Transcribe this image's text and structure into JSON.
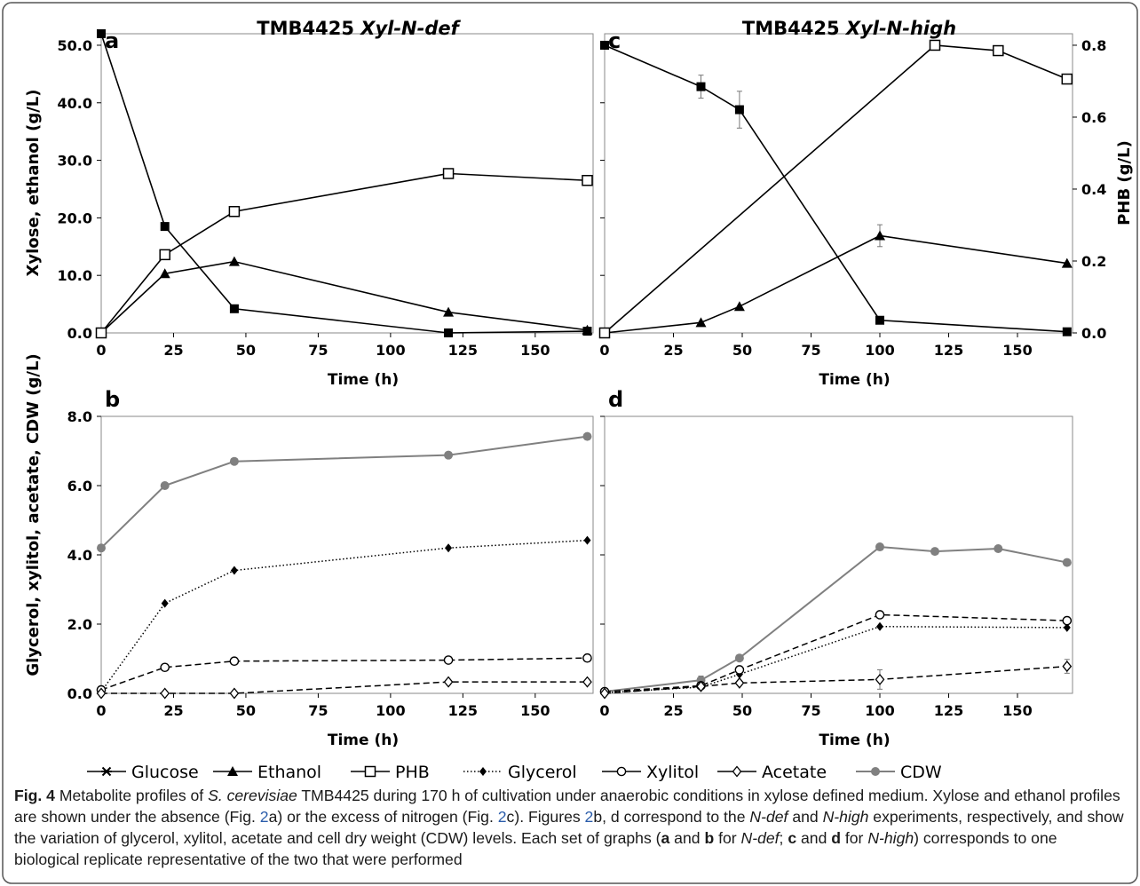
{
  "colors": {
    "black": "#000000",
    "cdw_gray": "#808080",
    "frame_border": "#555555"
  },
  "chart_data": [
    {
      "panel": "a",
      "type": "line",
      "title_prefix": "TMB4425",
      "title_strain": "Xyl-N-def",
      "xlabel": "Time (h)",
      "ylabel": "Xylose, ethanol (g/L)",
      "xlim": [
        0,
        170
      ],
      "ylim": [
        0,
        52
      ],
      "xticks": [
        "0",
        "25",
        "50",
        "75",
        "100",
        "125",
        "150"
      ],
      "yticks": [
        "0.0",
        "10.0",
        "20.0",
        "30.0",
        "40.0",
        "50.0"
      ],
      "series": [
        {
          "name": "Xylose",
          "marker": "square-filled",
          "axis": "left",
          "x": [
            0,
            22,
            46,
            120,
            168
          ],
          "y": [
            52.0,
            18.5,
            4.2,
            0.0,
            0.3
          ]
        },
        {
          "name": "Ethanol",
          "marker": "triangle-filled",
          "axis": "left",
          "x": [
            0,
            22,
            46,
            120,
            168
          ],
          "y": [
            0.0,
            10.3,
            12.4,
            3.6,
            0.5
          ]
        },
        {
          "name": "PHB",
          "marker": "square-open",
          "axis": "left",
          "x": [
            0,
            22,
            46,
            120,
            168
          ],
          "y": [
            0.0,
            13.6,
            21.1,
            27.7,
            26.5
          ]
        }
      ]
    },
    {
      "panel": "c",
      "type": "line",
      "title_prefix": "TMB4425",
      "title_strain": "Xyl-N-high",
      "xlabel": "Time (h)",
      "y2label": "PHB (g/L)",
      "xlim": [
        0,
        170
      ],
      "ylim": [
        0,
        52
      ],
      "y2lim": [
        0,
        0.832
      ],
      "xticks": [
        "0",
        "25",
        "50",
        "75",
        "100",
        "125",
        "150"
      ],
      "y2ticks": [
        "0.0",
        "0.2",
        "0.4",
        "0.6",
        "0.8"
      ],
      "series": [
        {
          "name": "Xylose",
          "marker": "square-filled",
          "axis": "left",
          "x": [
            0,
            35,
            49,
            100,
            168
          ],
          "y": [
            50.0,
            42.8,
            38.8,
            2.2,
            0.2
          ],
          "err": [
            0,
            2.0,
            3.2,
            0,
            0
          ]
        },
        {
          "name": "Ethanol",
          "marker": "triangle-filled",
          "axis": "left",
          "x": [
            0,
            35,
            49,
            100,
            168
          ],
          "y": [
            0.0,
            1.8,
            4.6,
            16.9,
            12.1
          ],
          "err": [
            0,
            0,
            0,
            1.9,
            0
          ]
        },
        {
          "name": "PHB",
          "marker": "square-open",
          "axis": "right",
          "x": [
            0,
            120,
            143,
            168
          ],
          "y": [
            0.0,
            0.8,
            0.785,
            0.706
          ]
        }
      ]
    },
    {
      "panel": "b",
      "type": "line",
      "xlabel": "Time (h)",
      "ylabel": "Glycerol, xylitol, acetate, CDW (g/L)",
      "xlim": [
        0,
        170
      ],
      "ylim": [
        0,
        8
      ],
      "xticks": [
        "0",
        "25",
        "50",
        "75",
        "100",
        "125",
        "150"
      ],
      "yticks": [
        "0.0",
        "2.0",
        "4.0",
        "6.0",
        "8.0"
      ],
      "series": [
        {
          "name": "CDW",
          "marker": "circle-gray",
          "line": "solid-gray",
          "x": [
            0,
            22,
            46,
            120,
            168
          ],
          "y": [
            4.2,
            6.0,
            6.7,
            6.88,
            7.42
          ]
        },
        {
          "name": "Glycerol",
          "marker": "diamond-filled",
          "line": "dotted",
          "x": [
            0,
            22,
            46,
            120,
            168
          ],
          "y": [
            0.05,
            2.6,
            3.55,
            4.2,
            4.42
          ]
        },
        {
          "name": "Xylitol",
          "marker": "circle-open",
          "line": "dashed",
          "x": [
            0,
            22,
            46,
            120,
            168
          ],
          "y": [
            0.1,
            0.75,
            0.93,
            0.96,
            1.02
          ]
        },
        {
          "name": "Acetate",
          "marker": "diamond-open",
          "line": "dashed",
          "x": [
            0,
            22,
            46,
            120,
            168
          ],
          "y": [
            0.0,
            0.0,
            0.0,
            0.33,
            0.33
          ]
        }
      ]
    },
    {
      "panel": "d",
      "type": "line",
      "xlabel": "Time (h)",
      "xlim": [
        0,
        170
      ],
      "ylim": [
        0,
        8
      ],
      "xticks": [
        "0",
        "25",
        "50",
        "75",
        "100",
        "125",
        "150"
      ],
      "series": [
        {
          "name": "CDW",
          "marker": "circle-gray",
          "line": "solid-gray",
          "x": [
            0,
            35,
            49,
            100,
            120,
            143,
            168
          ],
          "y": [
            0.05,
            0.38,
            1.02,
            4.23,
            4.1,
            4.18,
            3.78
          ],
          "err": [
            0,
            0.12,
            0,
            0,
            0,
            0,
            0
          ]
        },
        {
          "name": "Glycerol",
          "marker": "diamond-filled",
          "line": "dotted",
          "x": [
            0,
            35,
            49,
            100,
            168
          ],
          "y": [
            0.02,
            0.18,
            0.55,
            1.93,
            1.9
          ]
        },
        {
          "name": "Xylitol",
          "marker": "circle-open",
          "line": "dashed",
          "x": [
            0,
            35,
            49,
            100,
            168
          ],
          "y": [
            0.05,
            0.22,
            0.68,
            2.27,
            2.1
          ]
        },
        {
          "name": "Acetate",
          "marker": "diamond-open",
          "line": "dashed",
          "x": [
            0,
            35,
            49,
            100,
            168
          ],
          "y": [
            0.0,
            0.2,
            0.3,
            0.4,
            0.78
          ],
          "err": [
            0,
            0,
            0,
            0.28,
            0.2
          ]
        }
      ]
    }
  ],
  "legend": [
    {
      "name": "Glucose",
      "marker": "asterisk",
      "line": "solid"
    },
    {
      "name": "Ethanol",
      "marker": "triangle-filled",
      "line": "solid"
    },
    {
      "name": "PHB",
      "marker": "square-open",
      "line": "solid"
    },
    {
      "name": "Glycerol",
      "marker": "diamond-filled",
      "line": "dotted"
    },
    {
      "name": "Xylitol",
      "marker": "circle-open",
      "line": "solid"
    },
    {
      "name": "Acetate",
      "marker": "diamond-open",
      "line": "solid"
    },
    {
      "name": "CDW",
      "marker": "circle-gray",
      "line": "solid-gray"
    }
  ],
  "caption": {
    "fig_label": "Fig. 4",
    "t1": "Metabolite profiles of ",
    "t1_species": "S. cerevisiae",
    "t2": " TMB4425 during 170 h of cultivation under anaerobic conditions in xylose defined medium. Xylose and ethanol profiles are shown under the absence (Fig. ",
    "ref1": "2",
    "t3": "a) or the excess of nitrogen (Fig. ",
    "ref2": "2",
    "t4": "c). Figures ",
    "ref3": "2",
    "t5": "b, d correspond to the ",
    "ndef1": "N-def",
    "t6": " and ",
    "nhigh1": "N-high",
    "t7": " experiments, respectively, and show the variation of glycerol, xylitol, acetate and cell dry weight (CDW) levels. Each set of graphs (",
    "b_a": "a",
    "t8": " and ",
    "b_b": "b",
    "t9": " for ",
    "ndef2": "N-def",
    "t10": "; ",
    "b_c": "c",
    "t11": " and ",
    "b_d": "d",
    "t12": " for ",
    "nhigh2": "N-high",
    "t13": ") corresponds to one biological replicate representative of the two that were performed"
  }
}
